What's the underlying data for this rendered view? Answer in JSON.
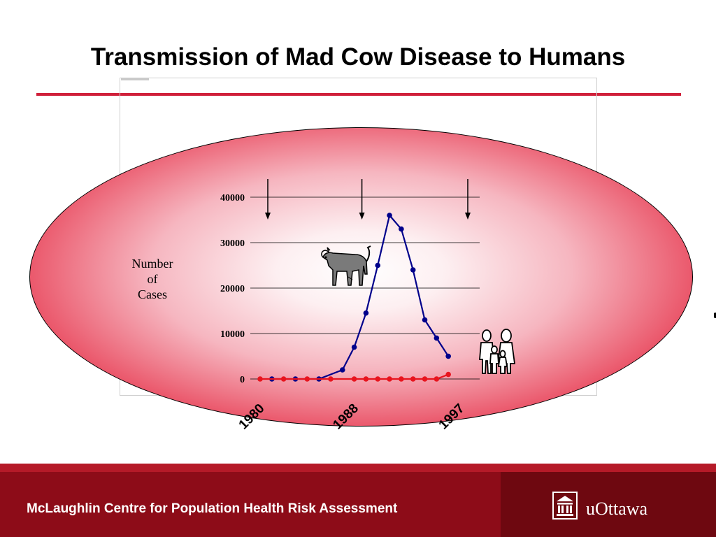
{
  "slide": {
    "title": "Transmission of Mad Cow Disease to Humans"
  },
  "colors": {
    "accent_red": "#d0203a",
    "cattle_series": "#00008b",
    "human_series": "#e8141e",
    "footer_bg": "#8d0c18"
  },
  "icons": {
    "cow": "cow-clipart",
    "family": "family-clipart",
    "university": "university-building-icon"
  },
  "chart_data": {
    "type": "line",
    "ylabel": "Number of Cases",
    "y_ticks": [
      "40000",
      "30000",
      "20000",
      "10000",
      "0"
    ],
    "y_tick_values": [
      40000,
      30000,
      20000,
      10000,
      0
    ],
    "ylim": [
      0,
      40000
    ],
    "xlim": [
      1980,
      1997
    ],
    "x_tick_labels": [
      "1980",
      "1988",
      "1997"
    ],
    "x_tick_values": [
      1980,
      1988,
      1997
    ],
    "annotation_arrows_at": [
      1980,
      1988,
      1997
    ],
    "grid": true,
    "series": [
      {
        "color": "#00008b",
        "points": [
          [
            1981,
            0
          ],
          [
            1983,
            0
          ],
          [
            1985,
            0
          ],
          [
            1987,
            2000
          ],
          [
            1988,
            7000
          ],
          [
            1989,
            14500
          ],
          [
            1990,
            25000
          ],
          [
            1991,
            36000
          ],
          [
            1992,
            33000
          ],
          [
            1993,
            24000
          ],
          [
            1994,
            13000
          ],
          [
            1995,
            9000
          ],
          [
            1996,
            5000
          ]
        ]
      },
      {
        "color": "#e8141e",
        "points": [
          [
            1980,
            0
          ],
          [
            1982,
            0
          ],
          [
            1984,
            0
          ],
          [
            1986,
            0
          ],
          [
            1988,
            0
          ],
          [
            1989,
            0
          ],
          [
            1990,
            0
          ],
          [
            1991,
            0
          ],
          [
            1992,
            0
          ],
          [
            1993,
            0
          ],
          [
            1994,
            0
          ],
          [
            1995,
            0
          ],
          [
            1996,
            1000
          ]
        ]
      }
    ]
  },
  "footer": {
    "org_name": "McLaughlin Centre for Population Health Risk Assessment",
    "logo_text": "uOttawa"
  }
}
